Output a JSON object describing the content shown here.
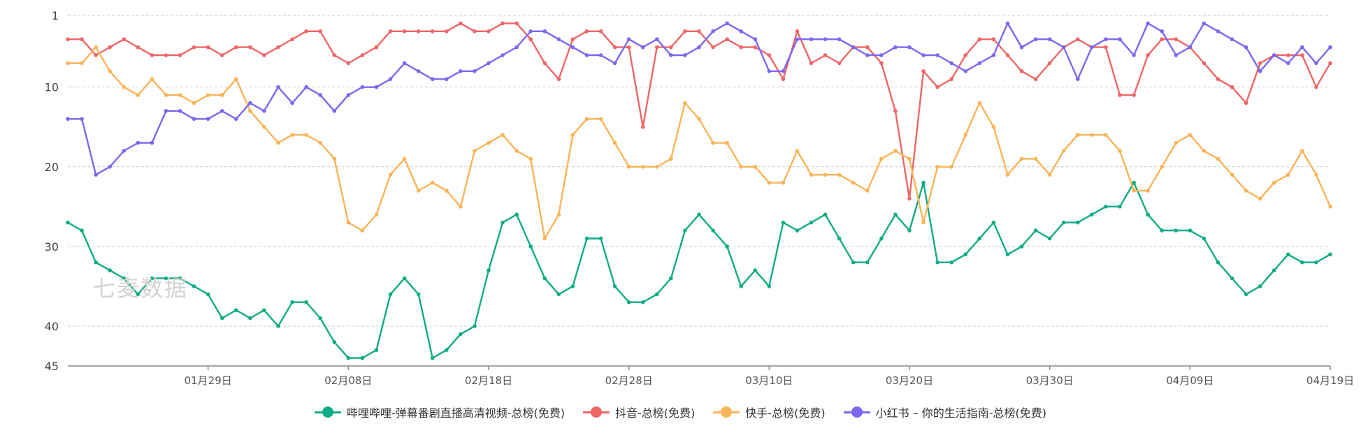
{
  "watermark": "七麦数据",
  "chart_data": {
    "type": "line",
    "y_inverted": true,
    "ylim": [
      1,
      45
    ],
    "yticks": [
      1,
      10,
      20,
      30,
      40,
      45
    ],
    "grid": true,
    "legend_position": "bottom",
    "xlabels": [
      "01月29日",
      "02月08日",
      "02月18日",
      "02月28日",
      "03月10日",
      "03月20日",
      "03月30日",
      "04月09日",
      "04月19日"
    ],
    "x_start_label_offset": 10,
    "label_step": 10,
    "series": [
      {
        "name": "哔哩哔哩-弹幕番剧直播高清视频-总榜(免费)",
        "color": "#10ac84",
        "values": [
          27,
          28,
          32,
          33,
          34,
          36,
          34,
          34,
          34,
          35,
          36,
          39,
          38,
          39,
          38,
          40,
          37,
          37,
          39,
          42,
          44,
          44,
          43,
          36,
          34,
          36,
          44,
          43,
          41,
          40,
          33,
          27,
          26,
          30,
          34,
          36,
          35,
          29,
          29,
          35,
          37,
          37,
          36,
          34,
          28,
          26,
          28,
          30,
          35,
          33,
          35,
          27,
          28,
          27,
          26,
          29,
          32,
          32,
          29,
          26,
          28,
          22,
          32,
          32,
          31,
          29,
          27,
          31,
          30,
          28,
          29,
          27,
          27,
          26,
          25,
          25,
          22,
          26,
          28,
          28,
          28,
          29,
          32,
          34,
          36,
          35,
          33,
          31,
          32,
          32,
          31
        ]
      },
      {
        "name": "抖音-总榜(免费)",
        "color": "#ee6666",
        "values": [
          4,
          4,
          6,
          5,
          4,
          5,
          6,
          6,
          6,
          5,
          5,
          6,
          5,
          5,
          6,
          5,
          4,
          3,
          3,
          6,
          7,
          6,
          5,
          3,
          3,
          3,
          3,
          3,
          2,
          3,
          3,
          2,
          2,
          4,
          7,
          9,
          4,
          3,
          3,
          5,
          5,
          15,
          5,
          5,
          3,
          3,
          5,
          4,
          5,
          5,
          6,
          9,
          3,
          7,
          6,
          7,
          5,
          5,
          7,
          13,
          24,
          8,
          10,
          9,
          6,
          4,
          4,
          6,
          8,
          9,
          7,
          5,
          4,
          5,
          5,
          11,
          11,
          6,
          4,
          4,
          5,
          7,
          9,
          10,
          12,
          7,
          6,
          6,
          6,
          10,
          7
        ]
      },
      {
        "name": "快手-总榜(免费)",
        "color": "#f8b458",
        "values": [
          7,
          7,
          5,
          8,
          10,
          11,
          9,
          11,
          11,
          12,
          11,
          11,
          9,
          13,
          15,
          17,
          16,
          16,
          17,
          19,
          27,
          28,
          26,
          21,
          19,
          23,
          22,
          23,
          25,
          18,
          17,
          16,
          18,
          19,
          29,
          26,
          16,
          14,
          14,
          17,
          20,
          20,
          20,
          19,
          12,
          14,
          17,
          17,
          20,
          20,
          22,
          22,
          18,
          21,
          21,
          21,
          22,
          23,
          19,
          18,
          19,
          27,
          20,
          20,
          16,
          12,
          15,
          21,
          19,
          19,
          21,
          18,
          16,
          16,
          16,
          18,
          23,
          23,
          20,
          17,
          16,
          18,
          19,
          21,
          23,
          24,
          22,
          21,
          18,
          21,
          25
        ]
      },
      {
        "name": "小红书 – 你的生活指南-总榜(免费)",
        "color": "#7b68ee",
        "values": [
          14,
          14,
          21,
          20,
          18,
          17,
          17,
          13,
          13,
          14,
          14,
          13,
          14,
          12,
          13,
          10,
          12,
          10,
          11,
          13,
          11,
          10,
          10,
          9,
          7,
          8,
          9,
          9,
          8,
          8,
          7,
          6,
          5,
          3,
          3,
          4,
          5,
          6,
          6,
          7,
          4,
          5,
          4,
          6,
          6,
          5,
          3,
          2,
          3,
          4,
          8,
          8,
          4,
          4,
          4,
          4,
          5,
          6,
          6,
          5,
          5,
          6,
          6,
          7,
          8,
          7,
          6,
          2,
          5,
          4,
          4,
          5,
          9,
          5,
          4,
          4,
          6,
          2,
          3,
          6,
          5,
          2,
          3,
          4,
          5,
          8,
          6,
          7,
          5,
          7,
          5
        ]
      }
    ]
  }
}
